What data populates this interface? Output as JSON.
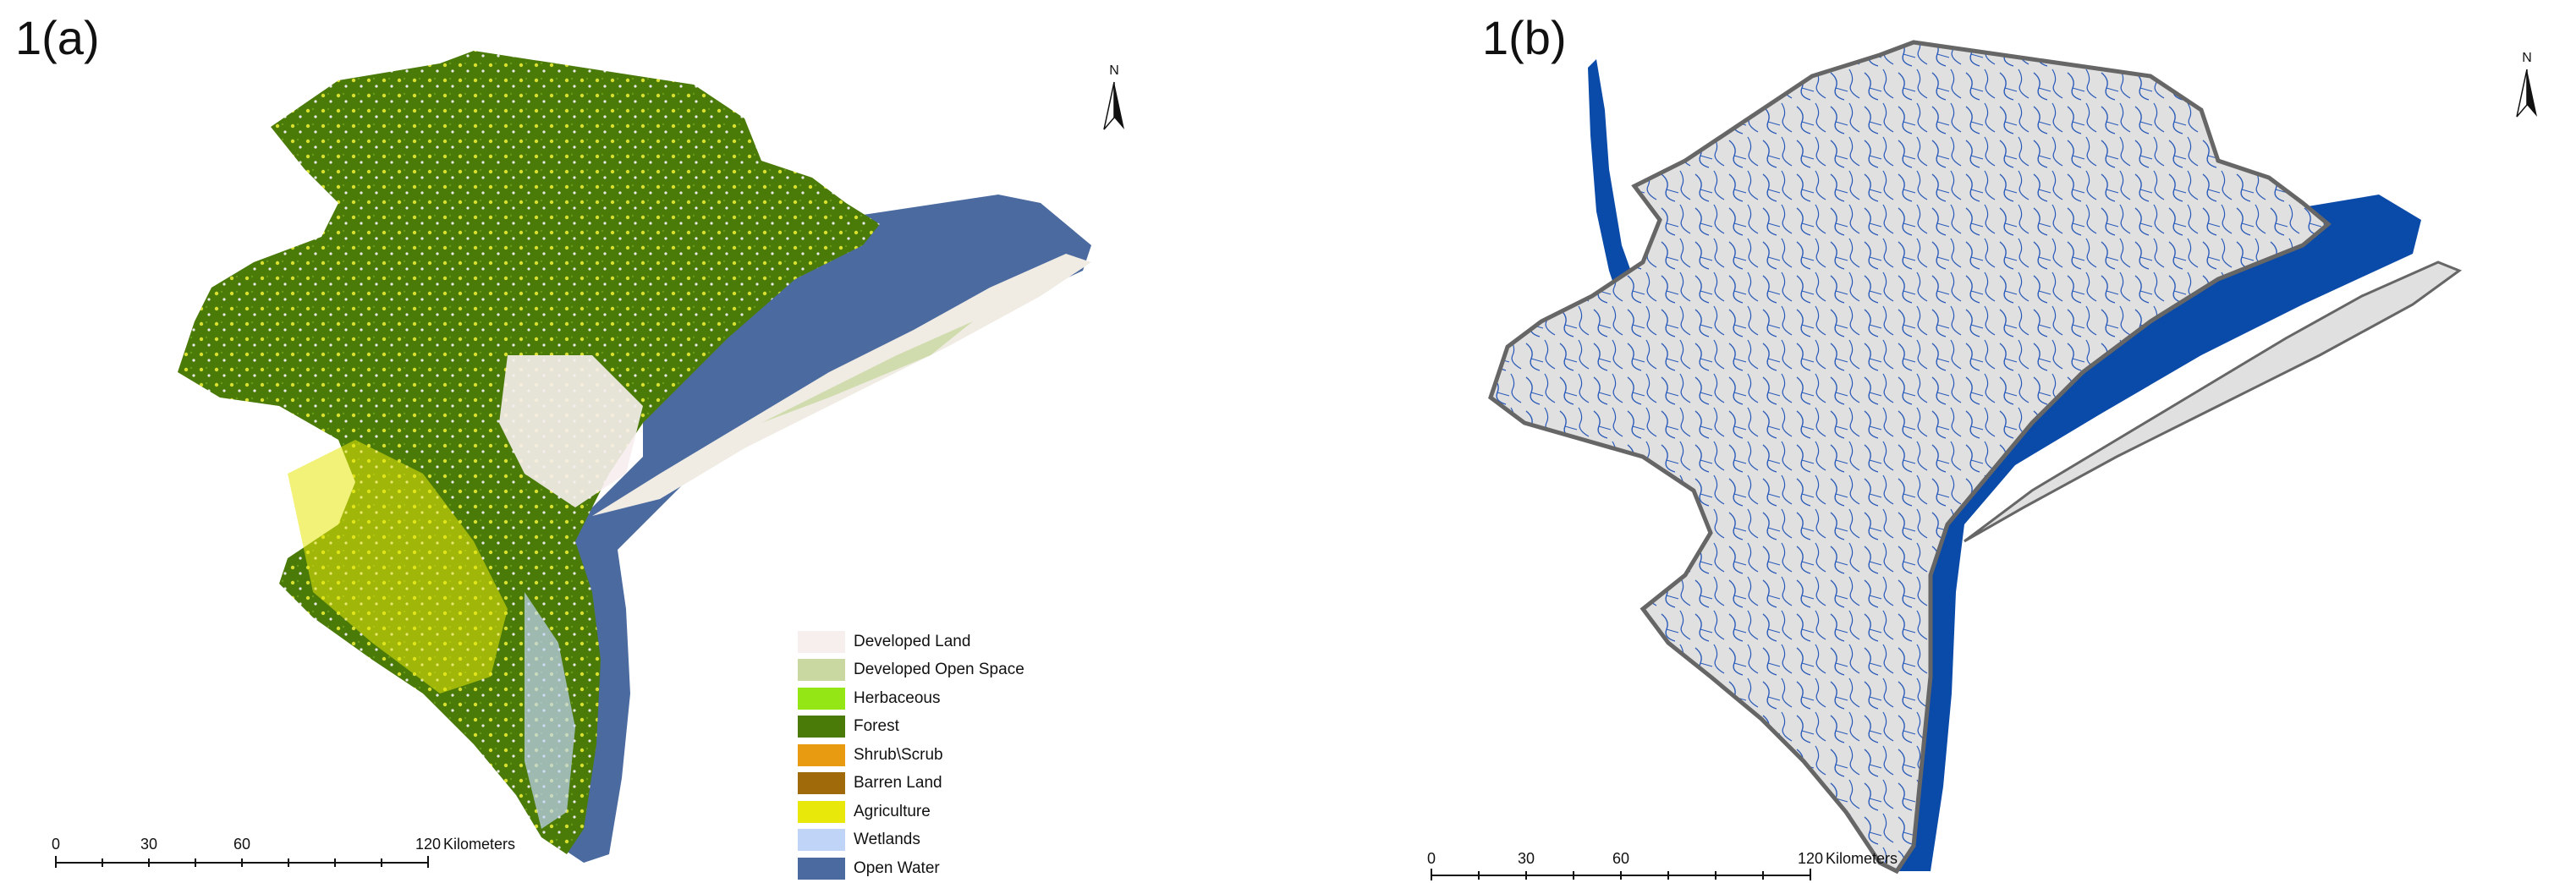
{
  "panels": [
    {
      "label": "1(a)",
      "north_letter": "N",
      "scale": {
        "ticks": [
          "0",
          "30",
          "60",
          "120"
        ],
        "unit": "Kilometers"
      },
      "legend": [
        {
          "label": "Developed Land",
          "color": "#f7eeee"
        },
        {
          "label": "Developed Open Space",
          "color": "#c8d8a0"
        },
        {
          "label": "Herbaceous",
          "color": "#94e614"
        },
        {
          "label": "Forest",
          "color": "#4a7a08"
        },
        {
          "label": "Shrub\\Scrub",
          "color": "#e89a10"
        },
        {
          "label": "Barren Land",
          "color": "#a06a0a"
        },
        {
          "label": "Agriculture",
          "color": "#e8e80a"
        },
        {
          "label": "Wetlands",
          "color": "#c0d4f8"
        },
        {
          "label": "Open Water",
          "color": "#4a6aa0"
        }
      ]
    },
    {
      "label": "1(b)",
      "north_letter": "N",
      "scale": {
        "ticks": [
          "0",
          "30",
          "60",
          "120"
        ],
        "unit": "Kilometers"
      },
      "colors": {
        "land": "#e0e0e0",
        "water": "#0a4aa8",
        "border": "#666666"
      }
    }
  ]
}
